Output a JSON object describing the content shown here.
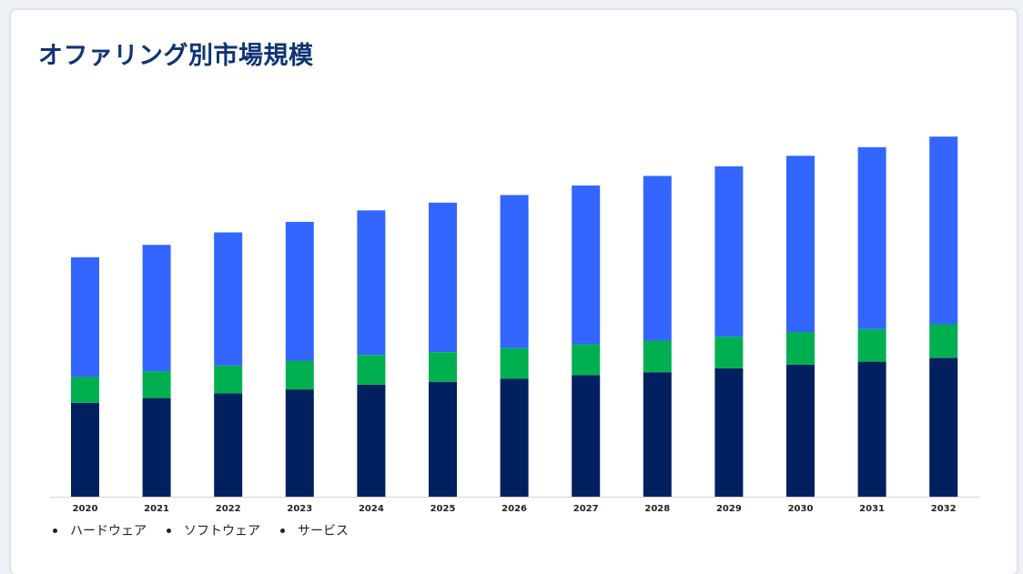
{
  "chart_data": {
    "type": "bar",
    "stacked": true,
    "title": "オファリング別市場規模",
    "categories": [
      "2020",
      "2021",
      "2022",
      "2023",
      "2024",
      "2025",
      "2026",
      "2027",
      "2028",
      "2029",
      "2030",
      "2031",
      "2032"
    ],
    "series": [
      {
        "name": "ハードウェア",
        "color": "#00205f",
        "values": [
          98,
          103,
          108,
          112,
          117,
          120,
          123,
          127,
          130,
          134,
          138,
          141,
          145
        ]
      },
      {
        "name": "ソフトウェア",
        "color": "#00b050",
        "values": [
          27,
          28,
          29,
          30,
          31,
          31,
          32,
          32,
          33,
          33,
          34,
          34,
          35
        ]
      },
      {
        "name": "サービス",
        "color": "#3366ff",
        "values": [
          125,
          132,
          139,
          145,
          151,
          156,
          160,
          166,
          172,
          178,
          184,
          190,
          196
        ]
      }
    ],
    "ylim": [
      0,
      380
    ],
    "y_axis_visible": false,
    "grid": false,
    "legend": "bottom-left"
  }
}
